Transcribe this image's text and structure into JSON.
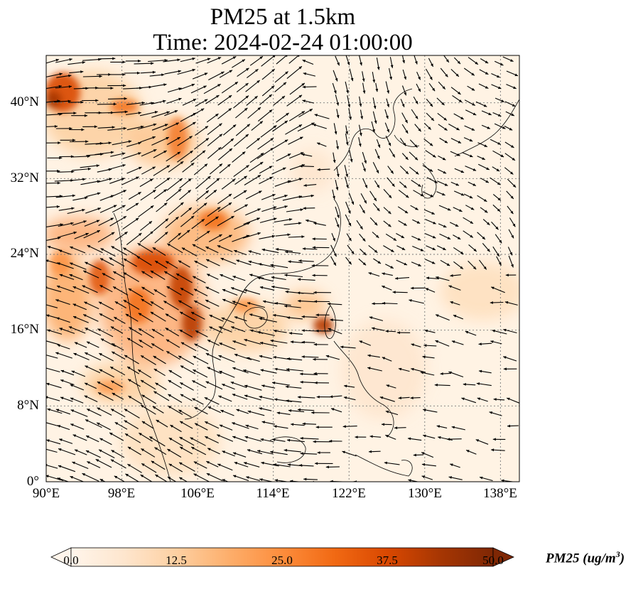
{
  "title": {
    "line1": "PM25 at 1.5km",
    "line2": "Time: 2024-02-24 01:00:00"
  },
  "map": {
    "extent": {
      "lon_min": 90,
      "lon_max": 140,
      "lat_min": 0,
      "lat_max": 45
    },
    "lat_ticks": [
      "0°",
      "8°N",
      "16°N",
      "24°N",
      "32°N",
      "40°N"
    ],
    "lat_tick_values": [
      0,
      8,
      16,
      24,
      32,
      40
    ],
    "lon_ticks": [
      "90°E",
      "98°E",
      "106°E",
      "114°E",
      "122°E",
      "130°E",
      "138°E"
    ],
    "lon_tick_values": [
      90,
      98,
      106,
      114,
      122,
      130,
      138
    ],
    "gridlines": "dotted",
    "field": "PM25 concentration with wind vectors"
  },
  "colorbar": {
    "label": "PM25 (ug/m",
    "label_sup": "3",
    "label_close": ")",
    "ticks": [
      "0.0",
      "12.5",
      "25.0",
      "37.5",
      "50.0"
    ],
    "tick_values": [
      0,
      12.5,
      25,
      37.5,
      50
    ],
    "colors": [
      "#fff5eb",
      "#fee6ce",
      "#fdd0a2",
      "#fdae6b",
      "#fd8d3c",
      "#f16913",
      "#d94801",
      "#a63603",
      "#7f2704"
    ],
    "extend": "both"
  }
}
